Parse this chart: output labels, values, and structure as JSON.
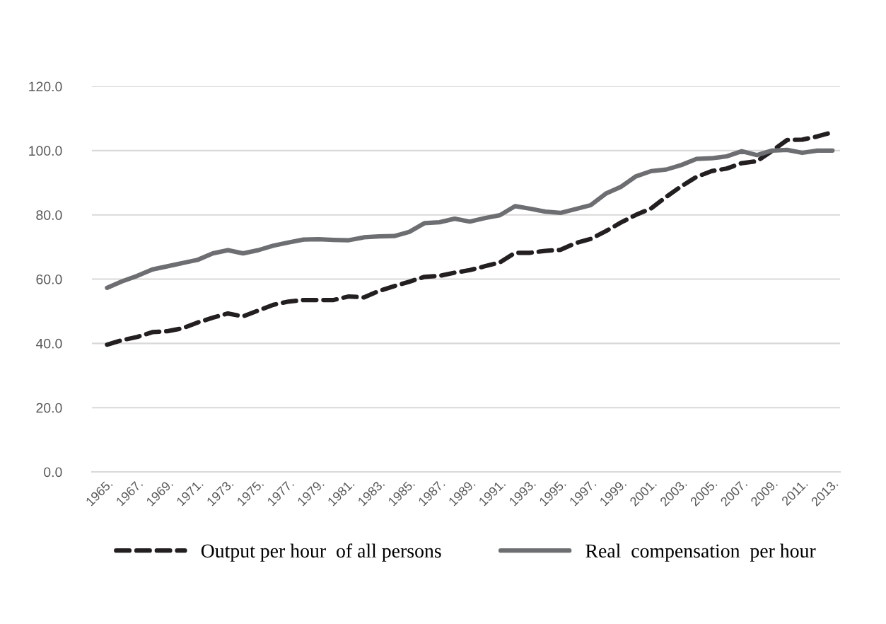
{
  "chart_data": {
    "type": "line",
    "categories": [
      "1965.",
      null,
      "1967.",
      null,
      "1969.",
      null,
      "1971.",
      null,
      "1973.",
      null,
      "1975.",
      null,
      "1977.",
      null,
      "1979.",
      null,
      "1981.",
      null,
      "1983.",
      null,
      "1985.",
      null,
      "1987.",
      null,
      "1989.",
      null,
      "1991.",
      null,
      "1993.",
      null,
      "1995.",
      null,
      "1997.",
      null,
      "1999.",
      null,
      "2001.",
      null,
      "2003.",
      null,
      "2005.",
      null,
      "2007.",
      null,
      "2009.",
      null,
      "2011.",
      null,
      "2013."
    ],
    "series": [
      {
        "name": "Output per hour  of all persons",
        "color": "#231f20",
        "line_style": "dashed",
        "values": [
          39.6,
          41,
          42,
          43.5,
          43.8,
          44.7,
          46.5,
          48,
          49.3,
          48.4,
          50.2,
          52,
          53,
          53.5,
          53.5,
          53.5,
          54.6,
          54.3,
          56.3,
          57.8,
          59.2,
          60.7,
          61,
          62,
          62.8,
          64,
          65.2,
          68.2,
          68.2,
          68.8,
          69.1,
          71.2,
          72.5,
          74.9,
          77.6,
          80,
          82,
          85.6,
          88.9,
          91.8,
          93.6,
          94.4,
          96.1,
          96.7,
          99.9,
          103.3,
          103.4,
          104.4,
          105.7
        ]
      },
      {
        "name": "Real  compensation  per hour",
        "color": "#6d6e71",
        "line_style": "solid",
        "values": [
          57.3,
          59.3,
          61,
          63,
          64,
          65,
          66,
          68,
          69,
          68,
          69,
          70.4,
          71.4,
          72.3,
          72.4,
          72.2,
          72.1,
          73,
          73.3,
          73.4,
          74.7,
          77.4,
          77.7,
          78.8,
          77.9,
          79,
          79.9,
          82.7,
          81.9,
          81,
          80.6,
          81.8,
          83,
          86.6,
          88.7,
          92,
          93.6,
          94.1,
          95.5,
          97.4,
          97.6,
          98.2,
          99.8,
          98.6,
          100,
          100.2,
          99.3,
          100,
          100
        ]
      }
    ],
    "ylim": [
      0,
      120
    ],
    "yticks": [
      {
        "value": 0,
        "label": "0.0"
      },
      {
        "value": 20,
        "label": "20.0"
      },
      {
        "value": 40,
        "label": "40.0"
      },
      {
        "value": 60,
        "label": "60.0"
      },
      {
        "value": 80,
        "label": "80.0"
      },
      {
        "value": 100,
        "label": "100.0"
      },
      {
        "value": 120,
        "label": "120.0"
      }
    ],
    "grid": "y",
    "legend": "bottom"
  }
}
